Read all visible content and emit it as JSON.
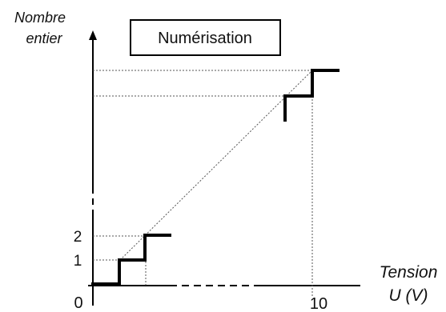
{
  "title": "Numérisation",
  "y_axis": {
    "label_line1": "Nombre",
    "label_line2": "entier",
    "ticks": [
      "1",
      "2"
    ]
  },
  "x_axis": {
    "label_line1": "Tension",
    "label_line2": "U (V)",
    "ticks": [
      "0",
      "10"
    ]
  },
  "colors": {
    "line": "#000000",
    "guide": "#555555"
  }
}
